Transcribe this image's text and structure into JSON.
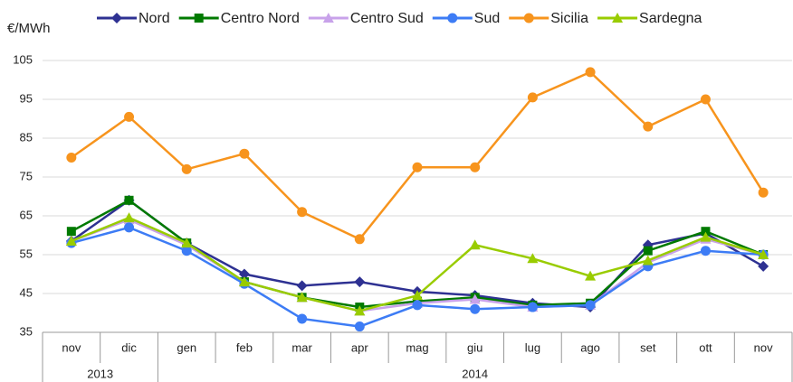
{
  "chart_data": {
    "type": "line",
    "y_unit": "€/MWh",
    "categories": [
      "nov",
      "dic",
      "gen",
      "feb",
      "mar",
      "apr",
      "mag",
      "giu",
      "lug",
      "ago",
      "set",
      "ott",
      "nov"
    ],
    "year_groups": [
      {
        "label": "2013",
        "count": 2
      },
      {
        "label": "2014",
        "count": 11
      }
    ],
    "ylim": [
      35,
      105
    ],
    "yticks": [
      35,
      45,
      55,
      65,
      75,
      85,
      95,
      105
    ],
    "grid": true,
    "series": [
      {
        "name": "Nord",
        "color": "#2e3192",
        "marker": "diamond",
        "values": [
          58.5,
          69,
          58,
          50,
          47,
          48,
          45.5,
          44.5,
          42.5,
          41.5,
          57.5,
          60.5,
          52
        ]
      },
      {
        "name": "Centro Nord",
        "color": "#007a00",
        "marker": "square",
        "values": [
          61,
          69,
          58,
          48,
          44,
          41.5,
          43,
          44,
          42,
          42.5,
          56,
          61,
          55
        ]
      },
      {
        "name": "Centro Sud",
        "color": "#c8a2ea",
        "marker": "triangle",
        "values": [
          58.5,
          64,
          57.5,
          48,
          44,
          40.5,
          42.5,
          43.5,
          41.5,
          42,
          53,
          59,
          55
        ]
      },
      {
        "name": "Sud",
        "color": "#3d7cf5",
        "marker": "circle",
        "values": [
          58,
          62,
          56,
          47.5,
          38.5,
          36.5,
          42,
          41,
          41.5,
          42,
          52,
          56,
          55
        ]
      },
      {
        "name": "Sicilia",
        "color": "#f7941d",
        "marker": "circle",
        "values": [
          80,
          90.5,
          77,
          81,
          66,
          59,
          77.5,
          77.5,
          95.5,
          102,
          88,
          95,
          71
        ]
      },
      {
        "name": "Sardegna",
        "color": "#99cc00",
        "marker": "triangle",
        "values": [
          58.5,
          64.5,
          58,
          48,
          44,
          40.5,
          44.5,
          57.5,
          54,
          49.5,
          53.5,
          59.5,
          55
        ]
      }
    ]
  }
}
